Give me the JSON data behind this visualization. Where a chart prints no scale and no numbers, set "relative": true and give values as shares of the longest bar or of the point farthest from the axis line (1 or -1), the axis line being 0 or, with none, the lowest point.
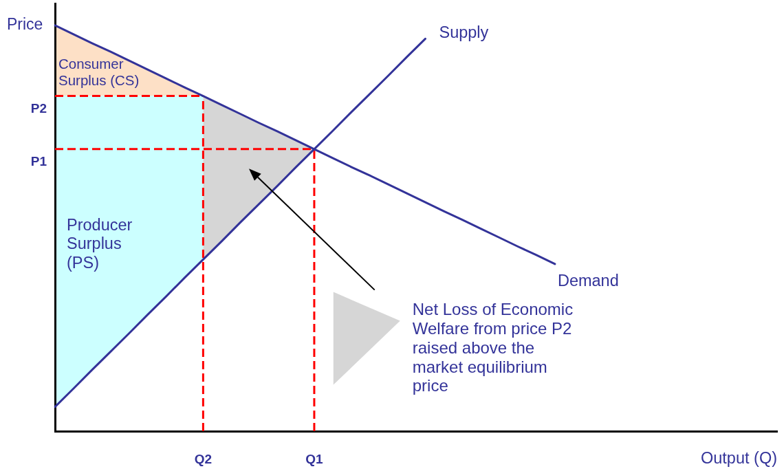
{
  "chart_data": {
    "type": "line",
    "relative": true,
    "xlabel": "Output (Q)",
    "ylabel": "Price",
    "categories": [
      null,
      null,
      null,
      null,
      null,
      null,
      null,
      null,
      "Q2",
      null,
      null,
      null,
      null,
      null,
      "Q1",
      null,
      null,
      null,
      null,
      null,
      null,
      null,
      null,
      null,
      null,
      null,
      null,
      null,
      null,
      null,
      null,
      null,
      null,
      null,
      null,
      null,
      null,
      null,
      null,
      null
    ],
    "series": [
      {
        "name": "Demand",
        "color": "#333399",
        "values": [
          1.0,
          0.978,
          0.956,
          0.935,
          0.913,
          0.891,
          0.869,
          0.847,
          0.826,
          0.804,
          0.782,
          0.76,
          0.739,
          0.717,
          0.695,
          0.673,
          0.651,
          0.63,
          0.608,
          0.586,
          0.564,
          0.542,
          0.521,
          0.499,
          0.477,
          0.455,
          0.434,
          0.412,
          null,
          null,
          null,
          null,
          null,
          null,
          null,
          null,
          null,
          null,
          null,
          null
        ]
      },
      {
        "name": "Supply",
        "color": "#333399",
        "values": [
          0.06,
          0.105,
          0.151,
          0.196,
          0.241,
          0.287,
          0.332,
          0.378,
          0.423,
          0.468,
          0.514,
          0.559,
          0.604,
          0.65,
          0.695,
          0.74,
          0.786,
          0.831,
          0.876,
          0.922,
          0.967,
          null,
          null,
          null,
          null,
          null,
          null,
          null,
          null,
          null,
          null,
          null,
          null,
          null,
          null,
          null,
          null,
          null,
          null,
          null
        ]
      }
    ],
    "ref_lines": [
      {
        "axis": "y",
        "value": 0.826,
        "label": "P2",
        "color": "#ff0000",
        "line_style": "dashed"
      },
      {
        "axis": "x",
        "value": "Q2",
        "color": "#ff0000",
        "line_style": "dashed"
      },
      {
        "axis": "y",
        "value": 0.695,
        "label": "P1",
        "color": "#ff0000",
        "line_style": "dashed"
      },
      {
        "axis": "x",
        "value": "Q1",
        "color": "#ff0000",
        "line_style": "dashed"
      }
    ],
    "annotations": [
      "Consumer Surplus (CS)",
      "Producer Surplus (PS)",
      "Net Loss of Economic Welfare from price P2 raised above the market equilibrium price"
    ]
  }
}
